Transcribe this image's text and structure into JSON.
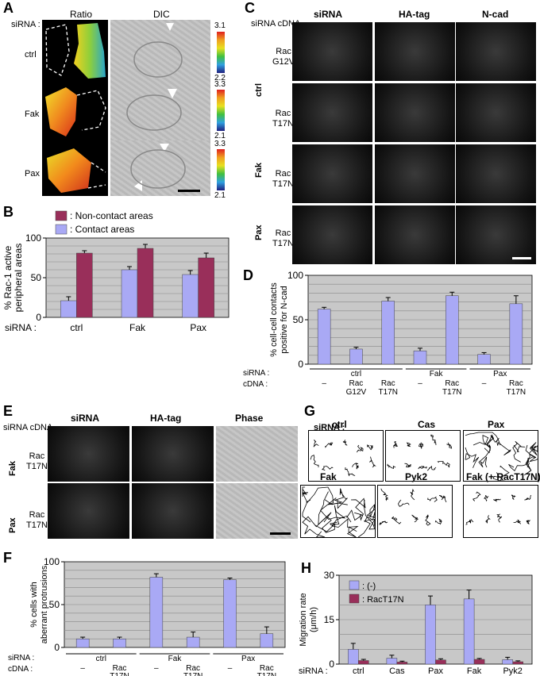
{
  "panel_letters": {
    "A": "A",
    "B": "B",
    "C": "C",
    "D": "D",
    "E": "E",
    "F": "F",
    "G": "G",
    "H": "H"
  },
  "panelA": {
    "sirna_label": "siRNA :",
    "col_headers": [
      "Ratio",
      "DIC"
    ],
    "rows": [
      "ctrl",
      "Fak",
      "Pax"
    ],
    "scale_ranges": [
      [
        "3.1",
        "2.2"
      ],
      [
        "3.3",
        "2.1"
      ],
      [
        "3.3",
        "2.1"
      ]
    ]
  },
  "panelC": {
    "corner": "siRNA cDNA",
    "col_headers": [
      "siRNA",
      "HA-tag",
      "N-cad"
    ],
    "groups": [
      "ctrl",
      "Fak",
      "Pax"
    ],
    "row_labels": [
      [
        "Rac",
        "G12V"
      ],
      [
        "Rac",
        "T17N"
      ],
      [
        "Rac",
        "T17N"
      ],
      [
        "Rac",
        "T17N"
      ]
    ]
  },
  "panelE": {
    "corner": "siRNA cDNA",
    "col_headers": [
      "siRNA",
      "HA-tag",
      "Phase"
    ],
    "groups": [
      "Fak",
      "Pax"
    ],
    "row_labels": [
      [
        "Rac",
        "T17N"
      ],
      [
        "Rac",
        "T17N"
      ]
    ]
  },
  "panelG": {
    "sirna_label": "siRNA :",
    "titles": [
      "ctrl",
      "Cas",
      "Pax",
      "Fak",
      "Pyk2",
      "Fak (+ RacT17N)"
    ]
  },
  "chart_data": [
    {
      "id": "B",
      "type": "bar",
      "ylabel": "% Rac-1 active peripheral areas",
      "ylim": [
        0,
        100
      ],
      "yticks": [
        0,
        50,
        100
      ],
      "grid": true,
      "xlabel_prefix": "siRNA :",
      "categories": [
        "ctrl",
        "Fak",
        "Pax"
      ],
      "series": [
        {
          "name": ": Contact areas",
          "color": "#a9a9f5",
          "values": [
            21,
            60,
            54
          ],
          "errors": [
            5,
            4,
            5
          ]
        },
        {
          "name": ": Non-contact areas",
          "color": "#992f5a",
          "values": [
            81,
            87,
            75
          ],
          "errors": [
            3,
            5,
            6
          ]
        }
      ]
    },
    {
      "id": "D",
      "type": "bar",
      "ylabel": "% cell-cell contacts positive for N-cad",
      "ylim": [
        0,
        100
      ],
      "yticks": [
        0,
        50,
        100
      ],
      "grid": true,
      "row_labels": [
        "siRNA :",
        "cDNA :"
      ],
      "sirna": [
        "ctrl",
        "",
        "",
        "Fak",
        "",
        "Pax",
        ""
      ],
      "sirna_groups": [
        "ctrl",
        "Fak",
        "Pax"
      ],
      "cdna": [
        "–",
        "Rac G12V",
        "Rac T17N",
        "–",
        "Rac T17N",
        "–",
        "Rac T17N"
      ],
      "series": [
        {
          "color": "#a9a9f5",
          "values": [
            62,
            17,
            71,
            15,
            77,
            11,
            68
          ],
          "errors": [
            2,
            2,
            4,
            3,
            4,
            2,
            9
          ]
        }
      ]
    },
    {
      "id": "F",
      "type": "bar",
      "ylabel": "% cells with aberrant protrusions",
      "ylim": [
        0,
        100
      ],
      "yticks": [
        0,
        50,
        100
      ],
      "grid": true,
      "row_labels": [
        "siRNA :",
        "cDNA :"
      ],
      "sirna_groups": [
        "ctrl",
        "Fak",
        "Pax"
      ],
      "cdna": [
        "–",
        "Rac T17N",
        "–",
        "Rac T17N",
        "–",
        "Rac T17N"
      ],
      "series": [
        {
          "color": "#a9a9f5",
          "values": [
            10,
            10,
            82,
            12,
            79,
            16
          ],
          "errors": [
            2,
            2,
            4,
            6,
            2,
            8
          ]
        }
      ]
    },
    {
      "id": "H",
      "type": "bar",
      "ylabel": "Migration rate (μm/h)",
      "ylim": [
        0,
        30
      ],
      "yticks": [
        0,
        15,
        30
      ],
      "grid": true,
      "xlabel_prefix": "siRNA :",
      "categories": [
        "ctrl",
        "Cas",
        "Pax",
        "Fak",
        "Pyk2"
      ],
      "series": [
        {
          "name": ": (-)",
          "color": "#a9a9f5",
          "values": [
            5,
            2,
            20,
            22,
            1.5
          ],
          "errors": [
            2,
            1,
            3,
            3,
            0.8
          ]
        },
        {
          "name": ": RacT17N",
          "color": "#992f5a",
          "values": [
            1.2,
            0.7,
            1.4,
            1.6,
            0.8
          ],
          "errors": [
            0.4,
            0.3,
            0.4,
            0.3,
            0.3
          ]
        }
      ]
    }
  ]
}
